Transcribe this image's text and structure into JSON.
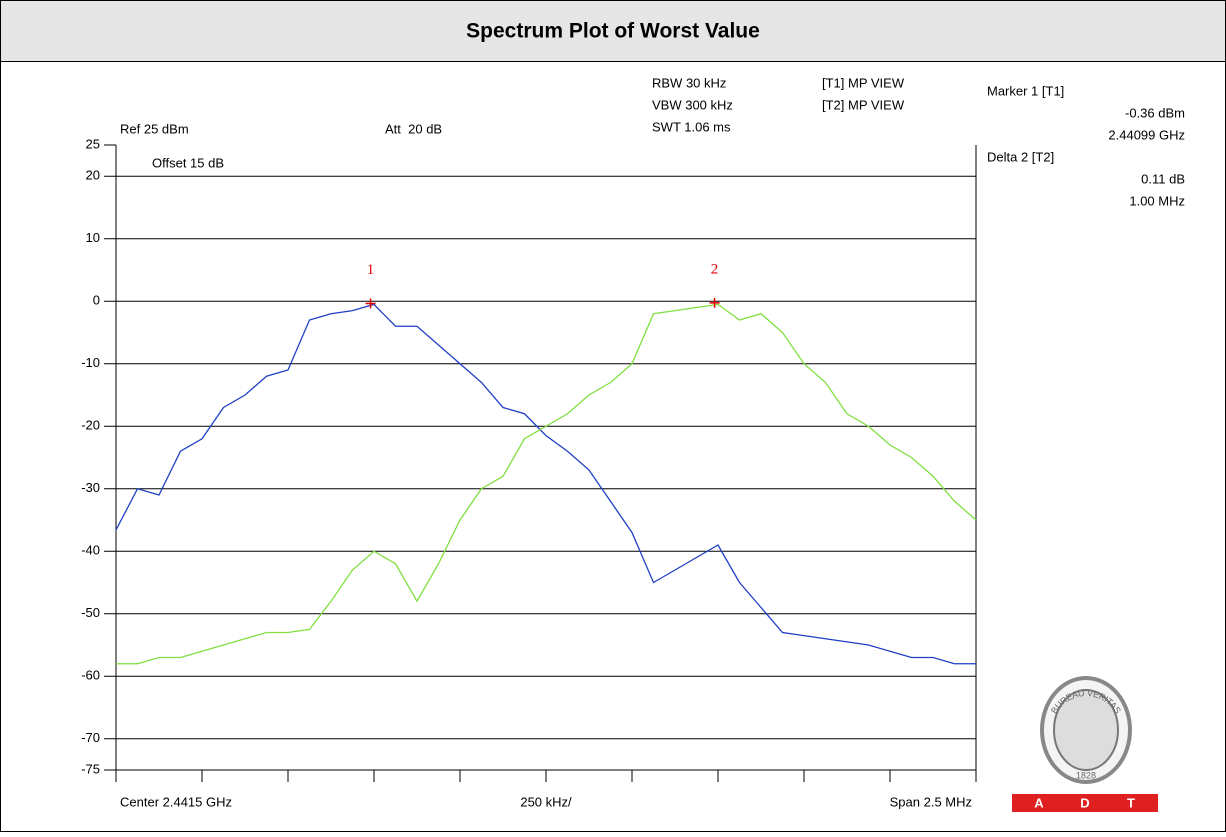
{
  "chart_data": {
    "type": "line",
    "title": "Spectrum Plot of Worst Value",
    "settings_text": {
      "rbw": "RBW 30 kHz",
      "vbw": "VBW 300 kHz",
      "swt": "SWT 1.06 ms",
      "t1": "[T1] MP VIEW",
      "t2": "[T2] MP VIEW",
      "ref": "Ref 25 dBm",
      "att": "Att  20 dB",
      "offset": "Offset 15 dB"
    },
    "marker_info": {
      "marker1": "Marker 1 [T1]",
      "marker1_level": "-0.36 dBm",
      "marker1_freq": "2.44099 GHz",
      "delta2": "Delta 2 [T2]",
      "delta2_level": "0.11 dB",
      "delta2_freq": "1.00 MHz"
    },
    "x_axis_text": {
      "center": "Center 2.4415 GHz",
      "per_div": "250 kHz/",
      "span": "Span 2.5 MHz"
    },
    "x": [
      2440.25,
      2440.3125,
      2440.375,
      2440.4375,
      2440.5,
      2440.5625,
      2440.625,
      2440.6875,
      2440.75,
      2440.8125,
      2440.875,
      2440.9375,
      2441,
      2441.0625,
      2441.125,
      2441.1875,
      2441.25,
      2441.3125,
      2441.375,
      2441.4375,
      2441.5,
      2441.5625,
      2441.625,
      2441.6875,
      2441.75,
      2441.8125,
      2441.875,
      2441.9375,
      2442,
      2442.0625,
      2442.125,
      2442.1875,
      2442.25,
      2442.3125,
      2442.375,
      2442.4375,
      2442.5,
      2442.5625,
      2442.625,
      2442.6875,
      2442.75
    ],
    "series": [
      {
        "color": "#1f3fc4",
        "values": [
          -36.6,
          -30,
          -31,
          -24,
          -22,
          -17,
          -15,
          -12,
          -11,
          -3,
          -2,
          -1.5,
          -0.5,
          -4,
          -4,
          -7,
          -10,
          -13,
          -17,
          -18,
          -21.5,
          -24,
          -27,
          -32,
          -37,
          -45,
          -43,
          -41,
          -39,
          -45,
          -49,
          -53,
          -53.5,
          -54,
          -54.5,
          -55,
          -56,
          -57,
          -57,
          -58,
          -58
        ]
      },
      {
        "color": "#7fe040",
        "values": [
          -58,
          -58,
          -57,
          -57,
          -56,
          -55,
          -54,
          -53,
          -53,
          -52.5,
          -48,
          -43,
          -40,
          -42,
          -48,
          -42,
          -35,
          -30,
          -28,
          -22,
          -20,
          -18,
          -15,
          -13,
          -10,
          -2,
          -1.5,
          -1,
          -0.5,
          -3,
          -2,
          -5,
          -10,
          -13,
          -18,
          -20,
          -23,
          -25,
          -28,
          -32,
          -35
        ]
      }
    ],
    "markers": [
      {
        "label": "1",
        "x": 2440.99,
        "y": -0.36
      },
      {
        "label": "2",
        "x": 2441.99,
        "y": -0.25
      }
    ],
    "xlim": [
      2440.25,
      2442.75
    ],
    "xticks": [
      2440.25,
      2440.5,
      2440.75,
      2441,
      2441.25,
      2441.5,
      2441.75,
      2442,
      2442.25,
      2442.5,
      2442.75
    ],
    "ylim": [
      -75,
      25
    ],
    "yticks": [
      25,
      20,
      10,
      0,
      -10,
      -20,
      -30,
      -40,
      -50,
      -60,
      -70,
      -75
    ],
    "grid": true,
    "logo": {
      "name": "BUREAU VERITAS",
      "year": "1828",
      "brand": [
        "A",
        "D",
        "T"
      ]
    }
  }
}
